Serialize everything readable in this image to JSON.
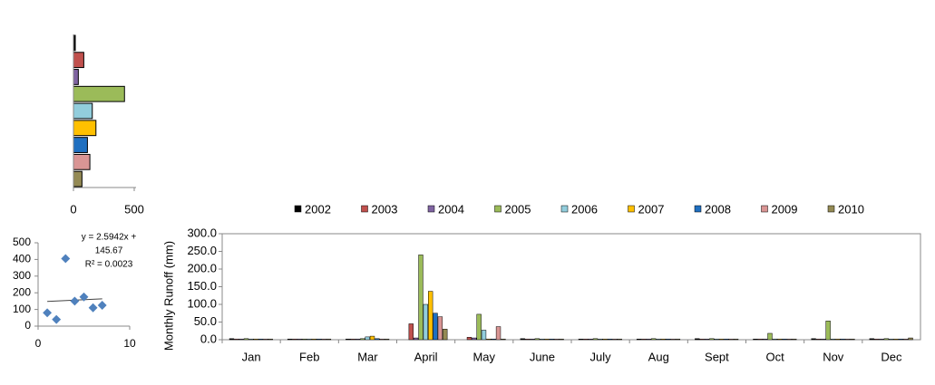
{
  "chart_data": [
    {
      "type": "barh",
      "categories": [
        null,
        null,
        null,
        null,
        null,
        null,
        null,
        null,
        null
      ],
      "values": [
        15,
        85,
        40,
        420,
        155,
        185,
        115,
        135,
        70
      ],
      "colors": [
        "#000000",
        "#c0504d",
        "#8064a2",
        "#9bbb59",
        "#92cddc",
        "#ffc000",
        "#1f6fc0",
        "#d99594",
        "#948a54"
      ],
      "xlim": [
        0,
        500
      ],
      "xticks": [
        0,
        500
      ]
    },
    {
      "type": "scatter",
      "x": [
        1,
        2,
        3,
        4,
        5,
        6,
        7
      ],
      "values": [
        80,
        40,
        405,
        150,
        175,
        110,
        125
      ],
      "color": "#4f81bd",
      "trendline": {
        "slope": 2.5942,
        "intercept": 145.67
      },
      "annotations": [
        "y = 2.5942x +",
        "145.67",
        "R² = 0.0023"
      ],
      "xlim": [
        0,
        10
      ],
      "xticks": [
        0,
        10
      ],
      "ylim": [
        0,
        500
      ],
      "yticks": [
        0,
        100,
        200,
        300,
        400,
        500
      ]
    },
    {
      "type": "bar",
      "ylabel": "Monthly  Runoff (mm)",
      "categories": [
        "Jan",
        "Feb",
        "Mar",
        "April",
        "May",
        "June",
        "July",
        "Aug",
        "Sept",
        "Oct",
        "Nov",
        "Dec"
      ],
      "series": [
        {
          "name": "2002",
          "color": "#000000",
          "values": [
            3,
            2,
            2,
            0,
            0,
            3,
            2,
            2,
            3,
            2,
            3,
            3
          ]
        },
        {
          "name": "2003",
          "color": "#c0504d",
          "values": [
            2,
            2,
            2,
            45,
            7,
            2,
            2,
            2,
            2,
            2,
            2,
            2
          ]
        },
        {
          "name": "2004",
          "color": "#8064a2",
          "values": [
            2,
            2,
            2,
            5,
            5,
            2,
            2,
            2,
            2,
            2,
            2,
            2
          ]
        },
        {
          "name": "2005",
          "color": "#9bbb59",
          "values": [
            3,
            2,
            3,
            240,
            72,
            3,
            3,
            3,
            3,
            18,
            53,
            3
          ]
        },
        {
          "name": "2006",
          "color": "#92cddc",
          "values": [
            2,
            2,
            8,
            100,
            27,
            2,
            2,
            2,
            2,
            2,
            2,
            2
          ]
        },
        {
          "name": "2007",
          "color": "#ffc000",
          "values": [
            2,
            2,
            10,
            137,
            2,
            2,
            2,
            2,
            2,
            2,
            2,
            2
          ]
        },
        {
          "name": "2008",
          "color": "#1f6fc0",
          "values": [
            2,
            2,
            3,
            75,
            2,
            2,
            2,
            2,
            2,
            2,
            2,
            2
          ]
        },
        {
          "name": "2009",
          "color": "#d99594",
          "values": [
            2,
            2,
            2,
            65,
            37,
            2,
            2,
            2,
            2,
            2,
            2,
            2
          ]
        },
        {
          "name": "2010",
          "color": "#948a54",
          "values": [
            2,
            2,
            2,
            30,
            2,
            2,
            2,
            2,
            2,
            2,
            2,
            5
          ]
        }
      ],
      "ylim": [
        0,
        300
      ],
      "yticks": [
        {
          "value": 0,
          "label": "0.0"
        },
        {
          "value": 50,
          "label": "50.0"
        },
        {
          "value": 100,
          "label": "100.0"
        },
        {
          "value": 150,
          "label": "150.0"
        },
        {
          "value": 200,
          "label": "200.0"
        },
        {
          "value": 250,
          "label": "250.0"
        },
        {
          "value": 300,
          "label": "300.0"
        }
      ]
    }
  ]
}
